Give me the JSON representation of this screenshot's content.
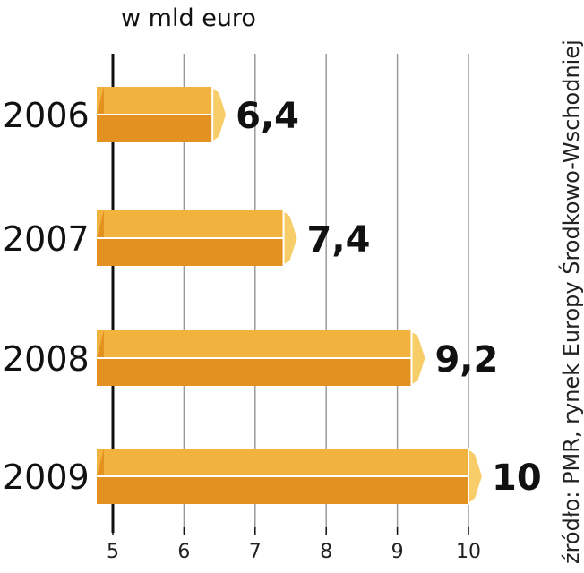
{
  "chart_data": {
    "type": "bar",
    "orientation": "horizontal",
    "unit_label": "w mld euro",
    "source": "źródło: PMR, rynek Europy Środkowo-Wschodniej",
    "categories": [
      "2006",
      "2007",
      "2008",
      "2009"
    ],
    "values": [
      6.4,
      7.4,
      9.2,
      10
    ],
    "value_labels": [
      "6,4",
      "7,4",
      "9,2",
      "10"
    ],
    "xlim": [
      5,
      10
    ],
    "xticks": [
      5,
      6,
      7,
      8,
      9,
      10
    ],
    "xtick_labels": [
      "5",
      "6",
      "7",
      "8",
      "9",
      "10"
    ],
    "grid": true,
    "colors": {
      "bar_top": "#f2b33e",
      "bar_bottom": "#e39120",
      "bar_end": "#f7cd6a",
      "bar_stroke": "#ffffff",
      "grid": "#9a9a9a",
      "axis": "#111111"
    }
  }
}
